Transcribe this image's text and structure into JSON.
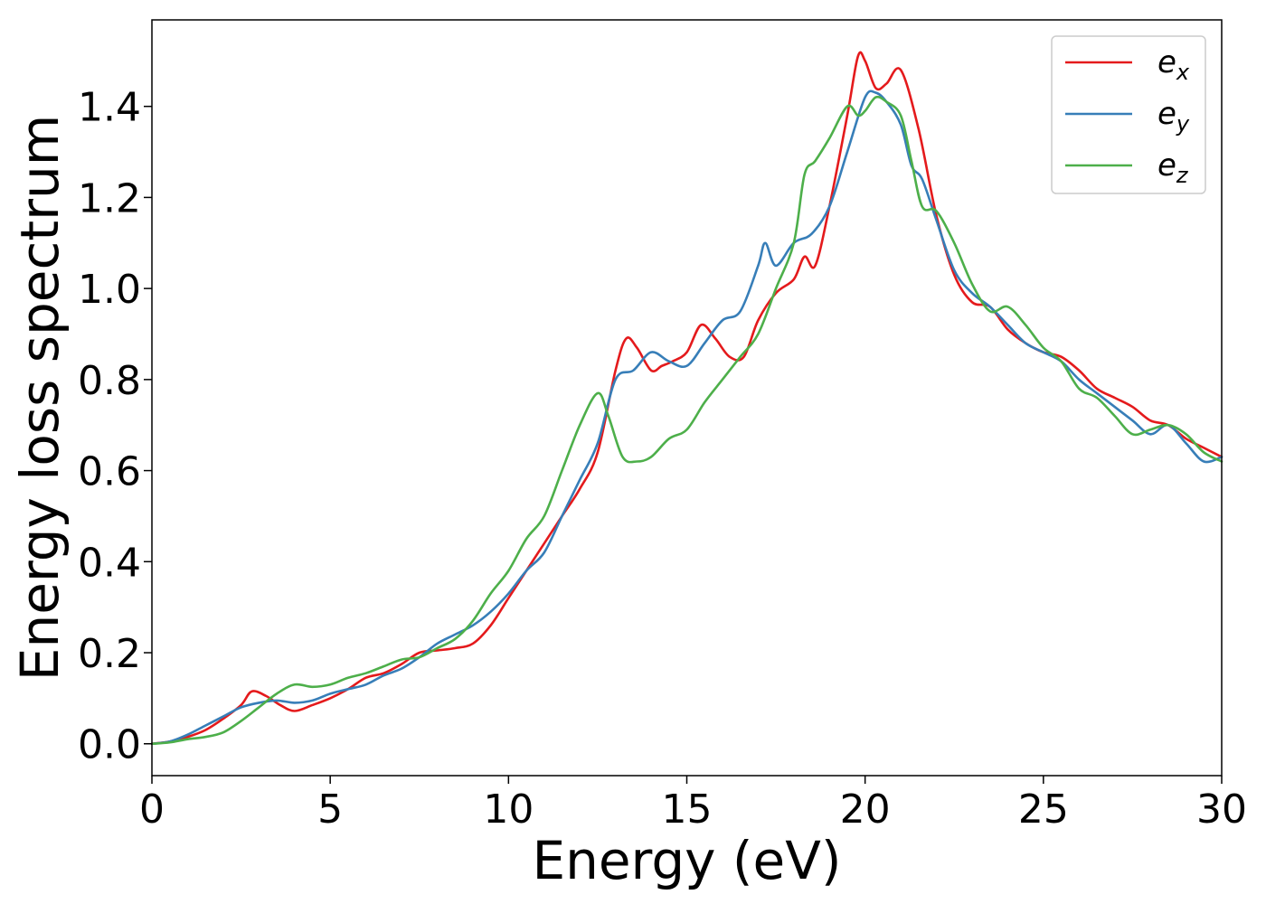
{
  "chart_data": {
    "type": "line",
    "xlabel": "Energy (eV)",
    "ylabel": "Energy loss spectrum",
    "xlim": [
      0,
      30
    ],
    "ylim": [
      -0.07,
      1.59
    ],
    "xticks": [
      0,
      5,
      10,
      15,
      20,
      25,
      30
    ],
    "xtick_labels": [
      "0",
      "5",
      "10",
      "15",
      "20",
      "25",
      "30"
    ],
    "yticks": [
      0.0,
      0.2,
      0.4,
      0.6,
      0.8,
      1.0,
      1.2,
      1.4
    ],
    "ytick_labels": [
      "0.0",
      "0.2",
      "0.4",
      "0.6",
      "0.8",
      "1.0",
      "1.2",
      "1.4"
    ],
    "grid": false,
    "legend_position": "top-right",
    "series": [
      {
        "name": "e_x",
        "label_base": "e",
        "label_sub": "x",
        "color": "#e41a1c",
        "x": [
          0,
          0.5,
          1,
          1.5,
          2,
          2.5,
          2.8,
          3.2,
          3.6,
          4,
          4.5,
          5,
          5.5,
          6,
          6.5,
          7,
          7.5,
          8,
          8.5,
          9,
          9.5,
          10,
          10.5,
          11,
          11.5,
          12,
          12.5,
          13,
          13.3,
          13.6,
          14,
          14.3,
          14.6,
          15,
          15.4,
          15.8,
          16.2,
          16.6,
          17,
          17.5,
          18,
          18.3,
          18.6,
          19,
          19.5,
          19.8,
          20,
          20.3,
          20.6,
          21,
          21.5,
          22,
          22.5,
          23,
          23.5,
          24,
          24.5,
          25,
          25.5,
          26,
          26.5,
          27,
          27.5,
          28,
          28.5,
          29,
          29.5,
          30
        ],
        "y": [
          0.0,
          0.005,
          0.015,
          0.03,
          0.055,
          0.085,
          0.115,
          0.105,
          0.085,
          0.072,
          0.085,
          0.1,
          0.12,
          0.145,
          0.155,
          0.175,
          0.2,
          0.205,
          0.21,
          0.22,
          0.26,
          0.32,
          0.38,
          0.44,
          0.5,
          0.56,
          0.64,
          0.82,
          0.89,
          0.87,
          0.82,
          0.83,
          0.84,
          0.86,
          0.92,
          0.89,
          0.85,
          0.85,
          0.93,
          0.99,
          1.02,
          1.07,
          1.05,
          1.18,
          1.38,
          1.51,
          1.5,
          1.44,
          1.45,
          1.48,
          1.35,
          1.16,
          1.03,
          0.97,
          0.96,
          0.91,
          0.88,
          0.86,
          0.85,
          0.82,
          0.78,
          0.76,
          0.74,
          0.71,
          0.7,
          0.67,
          0.65,
          0.63
        ]
      },
      {
        "name": "e_y",
        "label_base": "e",
        "label_sub": "y",
        "color": "#377eb8",
        "x": [
          0,
          0.5,
          1,
          1.5,
          2,
          2.5,
          3,
          3.5,
          4,
          4.5,
          5,
          5.5,
          6,
          6.5,
          7,
          7.5,
          8,
          8.5,
          9,
          9.5,
          10,
          10.5,
          11,
          11.5,
          12,
          12.5,
          13,
          13.5,
          14,
          14.5,
          15,
          15.5,
          16,
          16.5,
          17,
          17.2,
          17.5,
          18,
          18.5,
          19,
          19.5,
          20,
          20.3,
          20.6,
          21,
          21.3,
          21.6,
          22,
          22.5,
          23,
          23.5,
          24,
          24.5,
          25,
          25.5,
          26,
          26.5,
          27,
          27.5,
          28,
          28.5,
          29,
          29.5,
          30
        ],
        "y": [
          0.0,
          0.005,
          0.02,
          0.04,
          0.06,
          0.08,
          0.09,
          0.095,
          0.09,
          0.095,
          0.11,
          0.12,
          0.13,
          0.15,
          0.165,
          0.19,
          0.22,
          0.24,
          0.26,
          0.29,
          0.33,
          0.38,
          0.42,
          0.5,
          0.58,
          0.66,
          0.8,
          0.82,
          0.86,
          0.84,
          0.83,
          0.88,
          0.93,
          0.95,
          1.05,
          1.1,
          1.05,
          1.1,
          1.12,
          1.18,
          1.3,
          1.42,
          1.43,
          1.41,
          1.36,
          1.27,
          1.24,
          1.15,
          1.04,
          0.99,
          0.96,
          0.92,
          0.88,
          0.86,
          0.84,
          0.8,
          0.77,
          0.74,
          0.71,
          0.68,
          0.7,
          0.66,
          0.62,
          0.63
        ]
      },
      {
        "name": "e_z",
        "label_base": "e",
        "label_sub": "z",
        "color": "#4daf4a",
        "x": [
          0,
          0.5,
          1,
          1.5,
          2,
          2.5,
          3,
          3.5,
          4,
          4.5,
          5,
          5.5,
          6,
          6.5,
          7,
          7.5,
          8,
          8.5,
          9,
          9.5,
          10,
          10.5,
          11,
          11.5,
          12,
          12.5,
          12.8,
          13.2,
          13.6,
          14,
          14.5,
          15,
          15.5,
          16,
          16.5,
          17,
          17.5,
          18,
          18.3,
          18.6,
          19,
          19.5,
          19.8,
          20,
          20.3,
          20.6,
          21,
          21.3,
          21.6,
          22,
          22.5,
          23,
          23.5,
          24,
          24.5,
          25,
          25.5,
          26,
          26.5,
          27,
          27.5,
          28,
          28.5,
          29,
          29.5,
          30
        ],
        "y": [
          0.0,
          0.003,
          0.01,
          0.015,
          0.025,
          0.05,
          0.08,
          0.11,
          0.13,
          0.125,
          0.13,
          0.145,
          0.155,
          0.17,
          0.185,
          0.19,
          0.21,
          0.23,
          0.27,
          0.33,
          0.38,
          0.45,
          0.5,
          0.6,
          0.7,
          0.77,
          0.72,
          0.63,
          0.62,
          0.63,
          0.67,
          0.69,
          0.75,
          0.8,
          0.85,
          0.9,
          1.0,
          1.1,
          1.25,
          1.28,
          1.33,
          1.4,
          1.38,
          1.39,
          1.42,
          1.41,
          1.38,
          1.28,
          1.18,
          1.17,
          1.1,
          1.01,
          0.95,
          0.96,
          0.92,
          0.87,
          0.84,
          0.78,
          0.76,
          0.72,
          0.68,
          0.69,
          0.7,
          0.68,
          0.64,
          0.62
        ]
      }
    ]
  }
}
